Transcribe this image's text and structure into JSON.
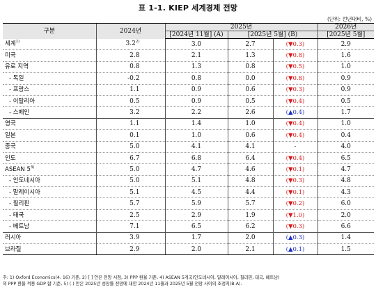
{
  "title": "표 1-1. KIEP 세계경제 전망",
  "unit": "(단위: 전년대비, %)",
  "header": {
    "category": "구분",
    "y2024": "2024년",
    "y2025": "2025년",
    "y2026": "2026년",
    "nov2024": "[2024년 11월] (A)",
    "may2025": "[2025년 5월] (B)",
    "may2025_b": "[2025년 5월]"
  },
  "rows": [
    {
      "label": "세계",
      "sup": "1)",
      "v2024": "3.2",
      "v2024_sup": "2)",
      "a": "3.0",
      "b": "2.7",
      "chg": "(▼0.3)",
      "dir": "down",
      "v2026": "2.9"
    },
    {
      "label": "미국",
      "sup": "",
      "v2024": "2.8",
      "v2024_sup": "",
      "a": "2.1",
      "b": "1.3",
      "chg": "(▼0.8)",
      "dir": "down",
      "v2026": "1.6"
    },
    {
      "label": "유로 지역",
      "sup": "",
      "v2024": "0.8",
      "v2024_sup": "",
      "a": "1.3",
      "b": "0.8",
      "chg": "(▼0.5)",
      "dir": "down",
      "v2026": "1.0"
    },
    {
      "label": "- 독일",
      "sup": "",
      "v2024": "-0.2",
      "v2024_sup": "",
      "a": "0.8",
      "b": "0.0",
      "chg": "(▼0.8)",
      "dir": "down",
      "v2026": "0.9",
      "sub": true
    },
    {
      "label": "- 프랑스",
      "sup": "",
      "v2024": "1.1",
      "v2024_sup": "",
      "a": "0.9",
      "b": "0.6",
      "chg": "(▼0.3)",
      "dir": "down",
      "v2026": "0.9",
      "sub": true
    },
    {
      "label": "- 이탈리아",
      "sup": "",
      "v2024": "0.5",
      "v2024_sup": "",
      "a": "0.9",
      "b": "0.5",
      "chg": "(▼0.4)",
      "dir": "down",
      "v2026": "0.5",
      "sub": true
    },
    {
      "label": "- 스페인",
      "sup": "",
      "v2024": "3.2",
      "v2024_sup": "",
      "a": "2.2",
      "b": "2.6",
      "chg": "(▲0.4)",
      "dir": "up",
      "v2026": "1.7",
      "sub": true,
      "solid": true
    },
    {
      "label": "영국",
      "sup": "",
      "v2024": "1.1",
      "v2024_sup": "",
      "a": "1.4",
      "b": "1.0",
      "chg": "(▼0.4)",
      "dir": "down",
      "v2026": "1.0"
    },
    {
      "label": "일본",
      "sup": "",
      "v2024": "0.1",
      "v2024_sup": "",
      "a": "1.0",
      "b": "0.6",
      "chg": "(▼0.4)",
      "dir": "down",
      "v2026": "0.4"
    },
    {
      "label": "중국",
      "sup": "",
      "v2024": "5.0",
      "v2024_sup": "",
      "a": "4.1",
      "b": "4.1",
      "chg": "-",
      "dir": "none",
      "v2026": "4.0"
    },
    {
      "label": "인도",
      "sup": "",
      "v2024": "6.7",
      "v2024_sup": "",
      "a": "6.8",
      "b": "6.4",
      "chg": "(▼0.4)",
      "dir": "down",
      "v2026": "6.5"
    },
    {
      "label": "ASEAN 5",
      "sup": "3)",
      "v2024": "5.0",
      "v2024_sup": "",
      "a": "4.7",
      "b": "4.6",
      "chg": "(▼0.1)",
      "dir": "down",
      "v2026": "4.7"
    },
    {
      "label": "- 인도네시아",
      "sup": "",
      "v2024": "5.0",
      "v2024_sup": "",
      "a": "5.1",
      "b": "4.8",
      "chg": "(▼0.3)",
      "dir": "down",
      "v2026": "4.8",
      "sub": true
    },
    {
      "label": "- 말레이시아",
      "sup": "",
      "v2024": "5.1",
      "v2024_sup": "",
      "a": "4.5",
      "b": "4.4",
      "chg": "(▼0.1)",
      "dir": "down",
      "v2026": "4.3",
      "sub": true
    },
    {
      "label": "- 필리핀",
      "sup": "",
      "v2024": "5.7",
      "v2024_sup": "",
      "a": "5.9",
      "b": "5.7",
      "chg": "(▼0.2)",
      "dir": "down",
      "v2026": "6.0",
      "sub": true
    },
    {
      "label": "- 태국",
      "sup": "",
      "v2024": "2.5",
      "v2024_sup": "",
      "a": "2.9",
      "b": "1.9",
      "chg": "(▼1.0)",
      "dir": "down",
      "v2026": "2.0",
      "sub": true
    },
    {
      "label": "- 베트남",
      "sup": "",
      "v2024": "7.1",
      "v2024_sup": "",
      "a": "6.5",
      "b": "6.2",
      "chg": "(▼0.3)",
      "dir": "down",
      "v2026": "6.6",
      "sub": true,
      "solid": true
    },
    {
      "label": "러시아",
      "sup": "",
      "v2024": "3.9",
      "v2024_sup": "",
      "a": "1.7",
      "b": "2.0",
      "chg": "(▲0.3)",
      "dir": "up",
      "v2026": "1.4"
    },
    {
      "label": "브라질",
      "sup": "",
      "v2024": "2.9",
      "v2024_sup": "",
      "a": "2.0",
      "b": "2.1",
      "chg": "(▲0.1)",
      "dir": "up",
      "v2026": "1.5"
    }
  ],
  "notes": [
    "주: 1) Oxford Economics(4. 16) 기준, 2) [ ] 안은 전망 시점, 3) PPP 환율 기준, 4) ASEAN 5개국(인도네시아, 말레이시아, 필리핀, 태국, 베트남)",
    "의 PPP 환율 적용 GDP 합 기준, 5) ( ) 안은 2025년 성장률 전망에 대한 2024년 11월과 2025년 5월 전망 사이의 조정치(B-A)."
  ]
}
